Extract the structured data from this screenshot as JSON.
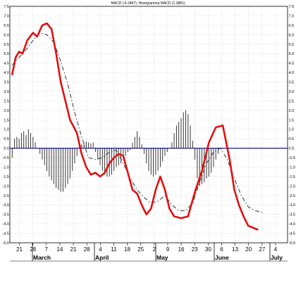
{
  "chart_data": {
    "type": "line",
    "title": "MACD (-4.2467) ,Histogramma MACD (1.3881)",
    "ylim": [
      -5.0,
      7.5
    ],
    "y_ticks": [
      "7.5",
      "7.0",
      "6.5",
      "6.0",
      "5.5",
      "5.0",
      "4.5",
      "4.0",
      "3.5",
      "3.0",
      "2.5",
      "2.0",
      "1.5",
      "1.0",
      "0.5",
      "0.0",
      "-0.5",
      "-1.0",
      "-1.5",
      "-2.0",
      "-2.5",
      "-3.0",
      "-3.5",
      "-4.0",
      "-4.5",
      "-5.0"
    ],
    "x_day_labels": [
      "21",
      "28",
      "7",
      "14",
      "21",
      "28",
      "4",
      "11",
      "18",
      "25",
      "2",
      "9",
      "16",
      "23",
      "30",
      "6",
      "13",
      "20",
      "27",
      "4"
    ],
    "x_month_labels": [
      "March",
      "April",
      "May",
      "June",
      "July"
    ],
    "grid": true,
    "legend": "none",
    "colors": {
      "macd": "#e01010",
      "signal": "#333333",
      "histogram": "#222222",
      "zero_line": "#1a1a8c"
    },
    "series": [
      {
        "role": "macd",
        "x": [
          0,
          1.5,
          3,
          4.5,
          6.5,
          9,
          10.8,
          13,
          15,
          17,
          19,
          21,
          23,
          25,
          28,
          30,
          32,
          34,
          36,
          38,
          40,
          42,
          44,
          46,
          48,
          50,
          52,
          54,
          56,
          58,
          60,
          62,
          64,
          66,
          68,
          70,
          73,
          76,
          79,
          82,
          85,
          88,
          91,
          94,
          96,
          98,
          100,
          102,
          104,
          106,
          108,
          110,
          112,
          114,
          116,
          118,
          120
        ],
        "y": [
          3.9,
          4.8,
          5.1,
          5.0,
          5.7,
          6.1,
          5.9,
          6.5,
          6.6,
          6.3,
          5.0,
          3.5,
          2.5,
          1.5,
          0.8,
          -0.3,
          -1.0,
          -1.4,
          -1.3,
          -1.5,
          -1.3,
          -0.8,
          -0.5,
          -0.3,
          -0.4,
          -1.3,
          -2.2,
          -2.4,
          -3.0,
          -3.5,
          -3.2,
          -2.2,
          -1.5,
          -2.2,
          -3.2,
          -3.6,
          -3.7,
          -3.6,
          -2.3,
          -1.2,
          0.3,
          1.1,
          1.2,
          -0.6,
          -2.2,
          -3.0,
          -3.6,
          -4.1,
          -4.2,
          -4.3,
          null,
          null,
          null,
          null,
          null,
          null,
          null
        ]
      },
      {
        "role": "signal",
        "x": [
          0,
          3,
          6,
          9,
          12,
          15,
          18,
          21,
          24,
          27,
          30,
          33,
          36,
          39,
          42,
          45,
          48,
          51,
          54,
          57,
          60,
          63,
          66,
          69,
          72,
          75,
          78,
          81,
          84,
          87,
          90,
          93,
          96,
          99,
          102,
          105,
          108
        ],
        "y": [
          4.4,
          4.8,
          5.2,
          5.7,
          6.1,
          6.0,
          5.6,
          4.6,
          3.4,
          1.9,
          0.6,
          -0.5,
          -0.6,
          -0.5,
          -0.2,
          -0.1,
          -0.8,
          -1.6,
          -2.2,
          -2.6,
          -2.9,
          -2.8,
          -2.5,
          -3.0,
          -3.3,
          -3.3,
          -2.9,
          -1.8,
          -0.8,
          -0.2,
          0.0,
          -0.6,
          -1.6,
          -2.5,
          -3.1,
          -3.3,
          -3.4
        ]
      },
      {
        "role": "histogram",
        "x": [
          0,
          1,
          2,
          3,
          4,
          5,
          6,
          7,
          8,
          9,
          10,
          11,
          12,
          13,
          14,
          15,
          16,
          17,
          18,
          19,
          20,
          21,
          22,
          23,
          24,
          25,
          26,
          27,
          28,
          29,
          30,
          31,
          32,
          33,
          34,
          35,
          36,
          37,
          38,
          39,
          40,
          41,
          42,
          43,
          44,
          45,
          46,
          47,
          48,
          49,
          50,
          51,
          52,
          53,
          54,
          55,
          56,
          57,
          58,
          59,
          60,
          61,
          62,
          63,
          64,
          65,
          66,
          67,
          68,
          69,
          70,
          71,
          72,
          73,
          74,
          75,
          76,
          77,
          78,
          79,
          80,
          81,
          82,
          83,
          84,
          85,
          86,
          87,
          88,
          89,
          90,
          91,
          92,
          93,
          94,
          95,
          96,
          97,
          98,
          99,
          100,
          101,
          102,
          103,
          104,
          105,
          106,
          107,
          108
        ],
        "y": [
          -0.5,
          0.5,
          0.6,
          0.5,
          0.8,
          0.9,
          0.7,
          1.0,
          0.8,
          0.6,
          0.3,
          0.0,
          -0.3,
          -0.6,
          -0.9,
          -1.2,
          -1.5,
          -1.7,
          -1.9,
          -2.1,
          -2.2,
          -2.3,
          -2.3,
          -2.1,
          -1.9,
          -1.6,
          -1.2,
          -0.8,
          -0.4,
          0.1,
          0.2,
          0.3,
          0.35,
          0.3,
          0.25,
          0.3,
          -0.2,
          -0.6,
          -0.9,
          -1.2,
          -1.4,
          -1.5,
          -1.5,
          -1.4,
          -1.2,
          -1.0,
          -0.9,
          -0.8,
          -0.6,
          -0.4,
          -0.2,
          -0.1,
          0.3,
          0.6,
          0.9,
          0.6,
          0.2,
          -0.3,
          -0.8,
          -1.2,
          -1.4,
          -1.5,
          -1.4,
          -1.2,
          -1.0,
          -0.7,
          -0.4,
          -0.2,
          0.0,
          0.3,
          0.8,
          1.2,
          1.4,
          1.6,
          1.9,
          2.0,
          1.8,
          1.2,
          0.4,
          -0.6,
          -1.6,
          -2.0,
          -1.9,
          -1.8,
          -1.6,
          -1.5,
          -1.3,
          -1.0,
          -0.6,
          -0.3,
          0,
          0,
          0,
          0,
          0,
          0,
          0,
          0,
          0,
          0,
          0,
          0,
          0,
          0,
          0,
          0,
          0,
          0,
          0
        ]
      }
    ]
  }
}
